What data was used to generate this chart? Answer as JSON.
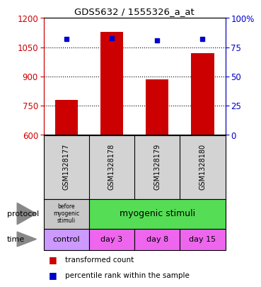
{
  "title": "GDS5632 / 1555326_a_at",
  "samples": [
    "GSM1328177",
    "GSM1328178",
    "GSM1328179",
    "GSM1328180"
  ],
  "bar_values": [
    780,
    1130,
    885,
    1020
  ],
  "bar_bottom": 600,
  "percentile_values": [
    82,
    83,
    81,
    82
  ],
  "left_ylim": [
    600,
    1200
  ],
  "right_ylim": [
    0,
    100
  ],
  "left_yticks": [
    600,
    750,
    900,
    1050,
    1200
  ],
  "right_yticks": [
    0,
    25,
    50,
    75,
    100
  ],
  "right_yticklabels": [
    "0",
    "25",
    "50",
    "75",
    "100%"
  ],
  "bar_color": "#cc0000",
  "percentile_color": "#0000cc",
  "protocol_colors": [
    "#c8c8c8",
    "#55dd55"
  ],
  "time_row": [
    "control",
    "day 3",
    "day 8",
    "day 15"
  ],
  "time_color": "#ee66ee",
  "time_control_color": "#cc99ff",
  "legend_bar_label": "transformed count",
  "legend_pct_label": "percentile rank within the sample",
  "xlabel_protocol": "protocol",
  "xlabel_time": "time",
  "arrow_color": "#888888",
  "bg_color": "#ffffff",
  "sample_bg_color": "#d3d3d3",
  "left_label_color": "#cc0000",
  "right_label_color": "#0000cc",
  "grid_yticks": [
    750,
    900,
    1050
  ]
}
